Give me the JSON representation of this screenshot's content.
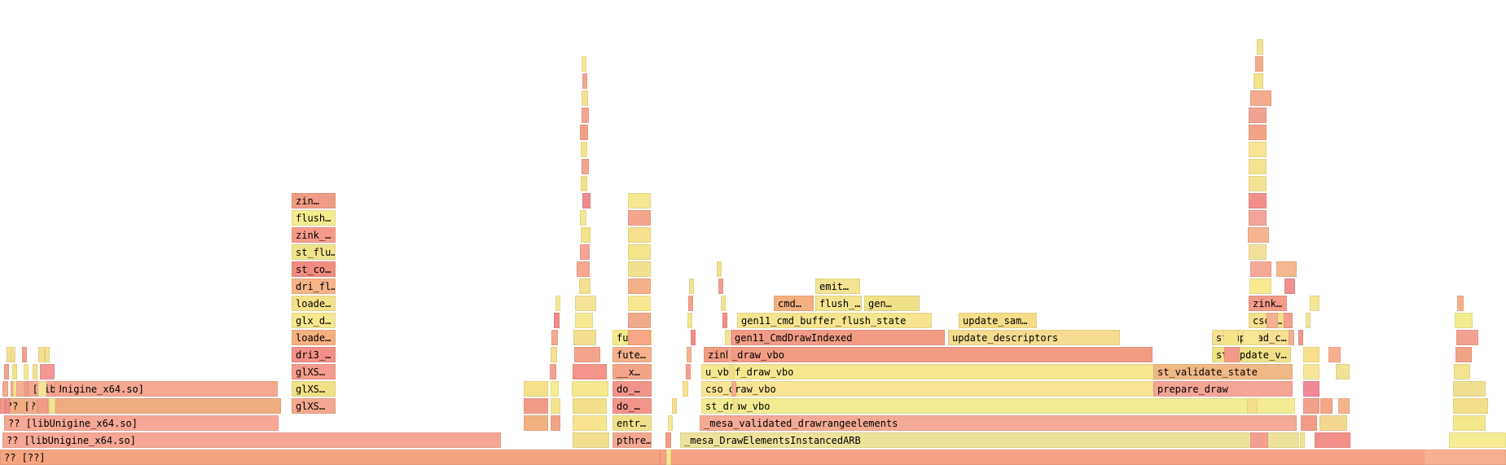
{
  "frames": [
    {
      "label": "?? [??]",
      "color": "#f4a580"
    },
    {
      "label": "?? [libUnigine_x64.so]",
      "color": "#f6a894"
    },
    {
      "label": "?? [libUnigine_x64.so]",
      "color": "#f6a894"
    },
    {
      "label": "?? [??]",
      "color": "#efac80"
    },
    {
      "label": "?? [libUnigine_x64.so]",
      "color": "#f6a890"
    },
    {
      "label": "glXS…",
      "color": "#f3e188"
    },
    {
      "label": "glXS…",
      "color": "#f69c8c"
    },
    {
      "label": "glXS…",
      "color": "#f4a890"
    },
    {
      "label": "dri3_…",
      "color": "#f29088"
    },
    {
      "label": "loade…",
      "color": "#f7b080"
    },
    {
      "label": "glx_d…",
      "color": "#f6e890"
    },
    {
      "label": "loade…",
      "color": "#f6e28c"
    },
    {
      "label": "dri_fl…",
      "color": "#f6b488"
    },
    {
      "label": "st_co…",
      "color": "#f08c80"
    },
    {
      "label": "st_flu…",
      "color": "#f1e38c"
    },
    {
      "label": "zink_…",
      "color": "#f59c88"
    },
    {
      "label": "flush…",
      "color": "#f4ec90"
    },
    {
      "label": "zin…",
      "color": "#f09c84"
    },
    {
      "label": "pthre…",
      "color": "#f4a890"
    },
    {
      "label": "entr…",
      "color": "#f1e08c"
    },
    {
      "label": "do_…",
      "color": "#f29488"
    },
    {
      "label": "__x…",
      "color": "#f4a588"
    },
    {
      "label": "do_…",
      "color": "#f29488"
    },
    {
      "label": "fute…",
      "color": "#f6b08c"
    },
    {
      "label": "fute…",
      "color": "#f4ea8c"
    },
    {
      "label": "_mesa_DrawElementsInstancedARB",
      "color": "#ede29a"
    },
    {
      "label": "_mesa_validated_drawrangeelements",
      "color": "#f4aa94"
    },
    {
      "label": "st_draw_vbo",
      "color": "#f4ec94"
    },
    {
      "label": "cso_draw_vbo",
      "color": "#f8e494"
    },
    {
      "label": "prepare_draw",
      "color": "#f4a594"
    },
    {
      "label": "u_vbuf_draw_vbo",
      "color": "#f7e890"
    },
    {
      "label": "st_validate_state",
      "color": "#f0b884"
    },
    {
      "label": "zink_draw_vbo",
      "color": "#f29c84"
    },
    {
      "label": "st_update_v…",
      "color": "#f0e088"
    },
    {
      "label": "gen11_CmdDrawIndexed",
      "color": "#f29c84"
    },
    {
      "label": "update_descriptors",
      "color": "#f5dc90"
    },
    {
      "label": "st_upload_c…",
      "color": "#f6e094"
    },
    {
      "label": "gen11_cmd_buffer_flush_state",
      "color": "#f6e490"
    },
    {
      "label": "update_sam…",
      "color": "#f6dc88"
    },
    {
      "label": "cso_…",
      "color": "#f3e08c"
    },
    {
      "label": "cmd…",
      "color": "#f4b080"
    },
    {
      "label": "flush_…",
      "color": "#f4e490"
    },
    {
      "label": "gen…",
      "color": "#f0e088"
    },
    {
      "label": "zink…",
      "color": "#f29c88"
    },
    {
      "label": "emit…",
      "color": "#f2e494"
    },
    {
      "label": "",
      "color": "#f6a284"
    },
    {
      "label": "",
      "color": "#f8b090"
    },
    {
      "label": "",
      "color": "#f4e48c"
    },
    {
      "label": "",
      "color": "#f09088"
    },
    {
      "label": "",
      "color": "#f6ec94"
    },
    {
      "label": "",
      "color": "#f4a090"
    },
    {
      "label": "",
      "color": "#f5d890"
    },
    {
      "label": "",
      "color": "#f2e88c"
    },
    {
      "label": "",
      "color": "#f29c88"
    },
    {
      "label": "",
      "color": "#f2a08c"
    },
    {
      "label": "",
      "color": "#f4b48c"
    },
    {
      "label": "",
      "color": "#f4e08c"
    },
    {
      "label": "",
      "color": "#f08898"
    },
    {
      "label": "",
      "color": "#eee090"
    },
    {
      "label": "",
      "color": "#f6e898"
    },
    {
      "label": "",
      "color": "#f2e490"
    },
    {
      "label": "",
      "color": "#f8e08c"
    },
    {
      "label": "",
      "color": "#f2a488"
    },
    {
      "label": "",
      "color": "#f09890"
    },
    {
      "label": "",
      "color": "#f4a290"
    },
    {
      "label": "",
      "color": "#f4e498"
    },
    {
      "label": "",
      "color": "#f1ec90"
    },
    {
      "label": "",
      "color": "#f4e694"
    },
    {
      "label": "",
      "color": "#f6b088"
    },
    {
      "label": "",
      "color": "#f4e08c"
    },
    {
      "label": "",
      "color": "#f6a884"
    },
    {
      "label": "",
      "color": "#f2e294"
    },
    {
      "label": "",
      "color": "#f6b090"
    },
    {
      "label": "",
      "color": "#f49888"
    },
    {
      "label": "",
      "color": "#f6e48c"
    },
    {
      "label": "",
      "color": "#f6e894"
    },
    {
      "label": "",
      "color": "#f4b090"
    },
    {
      "label": "",
      "color": "#f4a08c"
    },
    {
      "label": "",
      "color": "#f6ac90"
    },
    {
      "label": "",
      "color": "#f09090"
    },
    {
      "label": "",
      "color": "#f4b890"
    },
    {
      "label": "",
      "color": "#f8e890"
    },
    {
      "label": "",
      "color": "#f4aa94"
    },
    {
      "label": "",
      "color": "#f2e09c"
    },
    {
      "label": "",
      "color": "#f6b490"
    },
    {
      "label": "",
      "color": "#f4a498"
    },
    {
      "label": "",
      "color": "#f29088"
    },
    {
      "label": "",
      "color": "#f2e494"
    },
    {
      "label": "",
      "color": "#f4e490"
    },
    {
      "label": "",
      "color": "#f8e494"
    },
    {
      "label": "",
      "color": "#f4a484"
    },
    {
      "label": "",
      "color": "#f0a490"
    },
    {
      "label": "",
      "color": "#f4ac8c"
    },
    {
      "label": "",
      "color": "#f2e48c"
    },
    {
      "label": "",
      "color": "#f4ac88"
    },
    {
      "label": "",
      "color": "#f2e294"
    },
    {
      "label": "",
      "color": "#f2b080"
    },
    {
      "label": "",
      "color": "#f29c88"
    },
    {
      "label": "",
      "color": "#f6e08c"
    },
    {
      "label": "",
      "color": "#f2a488"
    },
    {
      "label": "",
      "color": "#f4e490"
    },
    {
      "label": "",
      "color": "#f5ec94"
    },
    {
      "label": "",
      "color": "#f2a490"
    },
    {
      "label": "",
      "color": "#f4e090"
    },
    {
      "label": "",
      "color": "#f4aa90"
    },
    {
      "label": "",
      "color": "#f08c88"
    },
    {
      "label": "",
      "color": "#f6e894"
    },
    {
      "label": "",
      "color": "#f0e090"
    },
    {
      "label": "",
      "color": "#f8e490"
    },
    {
      "label": "",
      "color": "#f4e08c"
    },
    {
      "label": "",
      "color": "#f6e890"
    },
    {
      "label": "",
      "color": "#f49488"
    },
    {
      "label": "",
      "color": "#f4a48c"
    },
    {
      "label": "",
      "color": "#f2e090"
    },
    {
      "label": "",
      "color": "#f4ea94"
    },
    {
      "label": "",
      "color": "#f6e498"
    },
    {
      "label": "",
      "color": "#f4e090"
    },
    {
      "label": "",
      "color": "#f6a890"
    },
    {
      "label": "",
      "color": "#f8a494"
    },
    {
      "label": "",
      "color": "#f2e48c"
    },
    {
      "label": "",
      "color": "#f4e894"
    },
    {
      "label": "",
      "color": "#f08c8c"
    },
    {
      "label": "",
      "color": "#f4e08c"
    },
    {
      "label": "",
      "color": "#f4a48c"
    },
    {
      "label": "",
      "color": "#f6e48c"
    },
    {
      "label": "",
      "color": "#f4a08c"
    },
    {
      "label": "",
      "color": "#f4a494"
    },
    {
      "label": "",
      "color": "#f4e094"
    },
    {
      "label": "",
      "color": "#f2a890"
    },
    {
      "label": "",
      "color": "#f6e890"
    },
    {
      "label": "",
      "color": "#f6a884"
    },
    {
      "label": "",
      "color": "#f0aa8c"
    },
    {
      "label": "",
      "color": "#f8e894"
    },
    {
      "label": "",
      "color": "#f4b088"
    },
    {
      "label": "",
      "color": "#f2e090"
    },
    {
      "label": "",
      "color": "#f4e48c"
    },
    {
      "label": "",
      "color": "#f6e090"
    },
    {
      "label": "",
      "color": "#f4a48c"
    },
    {
      "label": "",
      "color": "#f6e894"
    },
    {
      "label": "",
      "color": "#f49888"
    },
    {
      "label": "",
      "color": "#f08c8c"
    },
    {
      "label": "",
      "color": "#f4e48c"
    },
    {
      "label": "",
      "color": "#f29c88"
    },
    {
      "label": "",
      "color": "#f6e498"
    },
    {
      "label": "",
      "color": "#f49894"
    },
    {
      "label": "",
      "color": "#f4e090"
    },
    {
      "label": "",
      "color": "#f8e090"
    },
    {
      "label": "",
      "color": "#f2a490"
    },
    {
      "label": "",
      "color": "#f4e48c"
    },
    {
      "label": "",
      "color": "#f6e894"
    },
    {
      "label": "",
      "color": "#f4a090"
    },
    {
      "label": "",
      "color": "#f6e090"
    },
    {
      "label": "",
      "color": "#f4aa8c"
    },
    {
      "label": "",
      "color": "#f29c88"
    },
    {
      "label": "",
      "color": "#f4e490"
    },
    {
      "label": "",
      "color": "#f6b094"
    },
    {
      "label": "",
      "color": "#f6ac90"
    },
    {
      "label": "",
      "color": "#f0e094"
    },
    {
      "label": "",
      "color": "#f4a48c"
    },
    {
      "label": "",
      "color": "#f6e08c"
    },
    {
      "label": "",
      "color": "#f4ea90"
    },
    {
      "label": "",
      "color": "#f29c84"
    },
    {
      "label": "",
      "color": "#f8e894"
    },
    {
      "label": "",
      "color": "#f4e090"
    },
    {
      "label": "",
      "color": "#f6e490"
    },
    {
      "label": "",
      "color": "#f4a08c"
    },
    {
      "label": "",
      "color": "#f4b490"
    },
    {
      "label": "",
      "color": "#f28c88"
    },
    {
      "label": "",
      "color": "#f6e490"
    },
    {
      "label": "",
      "color": "#f4a48c"
    },
    {
      "label": "",
      "color": "#f2e494"
    },
    {
      "label": "",
      "color": "#f4e08c"
    },
    {
      "label": "",
      "color": "#f6a090"
    },
    {
      "label": "",
      "color": "#f4e494"
    },
    {
      "label": "",
      "color": "#f29088"
    },
    {
      "label": "",
      "color": "#f6e490"
    },
    {
      "label": "",
      "color": "#f4a88c"
    },
    {
      "label": "",
      "color": "#f4e090"
    },
    {
      "label": "",
      "color": "#f6ac90"
    },
    {
      "label": "",
      "color": "#f4e48c"
    }
  ]
}
